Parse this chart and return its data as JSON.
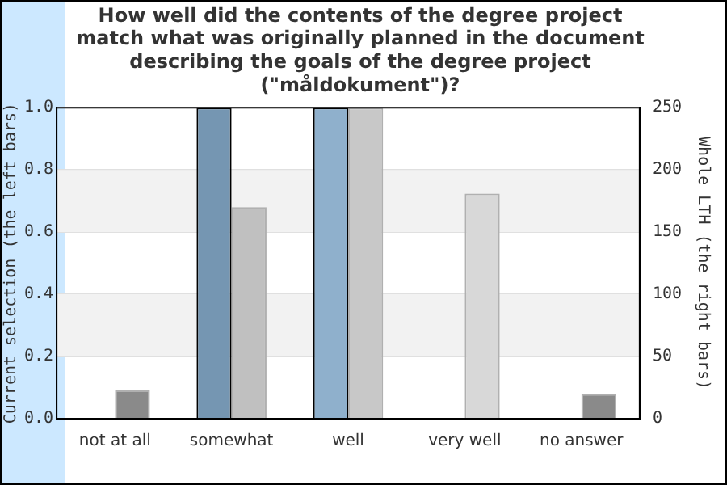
{
  "chart_data": {
    "type": "bar",
    "title": "How well did the contents of the degree project match what was originally planned in the document describing the goals of the degree project (\"måldokument\")?",
    "categories": [
      "not at all",
      "somewhat",
      "well",
      "very well",
      "no answer"
    ],
    "series": [
      {
        "values": [
          0,
          1,
          1,
          0,
          0
        ],
        "colors": [
          "#7596b2",
          "#7596b2",
          "#8fb0cc",
          "#8fb0cc",
          "#7596b2"
        ]
      },
      {
        "values": [
          23,
          170,
          250,
          181,
          20
        ],
        "axis": "y2",
        "colors": [
          "#8a8a8a",
          "#c0c0c0",
          "#c8c8c8",
          "#d8d8d8",
          "#8a8a8a"
        ]
      }
    ],
    "ylabel": "Current selection (the left bars)",
    "y2label": "Whole LTH (the right bars)",
    "ylim": [
      0,
      1
    ],
    "yticks": [
      {
        "value": 0,
        "label": "0.0"
      },
      0.2,
      0.4,
      0.6,
      0.8,
      {
        "value": 1,
        "label": "1.0"
      }
    ],
    "y2lim": [
      0,
      250
    ],
    "y2ticks": [
      0,
      50,
      100,
      150,
      200,
      250
    ],
    "grid": "y",
    "legend": false
  }
}
